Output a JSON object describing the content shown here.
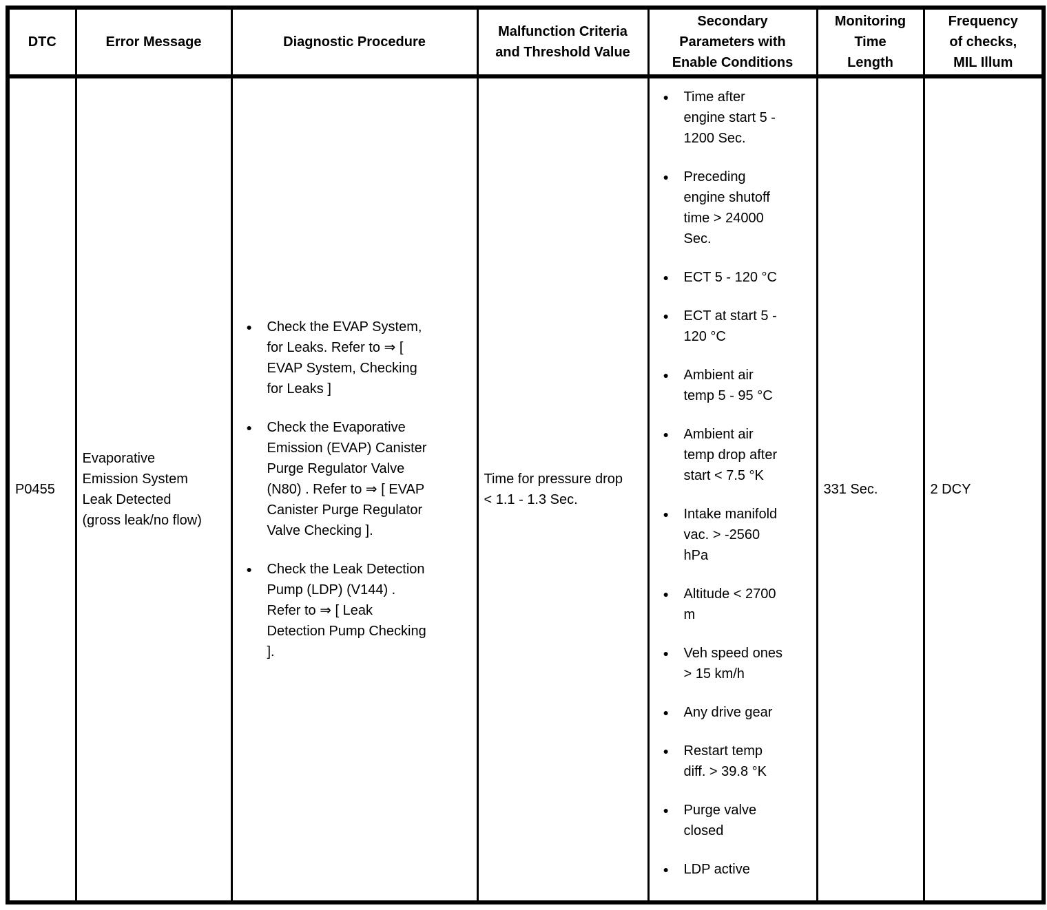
{
  "colors": {
    "text": "#000000",
    "background": "#ffffff",
    "border": "#000000"
  },
  "bullet_glyph": "●",
  "table": {
    "headers": [
      "DTC",
      "Error Message",
      "Diagnostic Procedure",
      "Malfunction Criteria and Threshold Value",
      "Secondary Parameters with Enable Conditions",
      "Monitoring Time Length",
      "Frequency of checks, MIL Illum"
    ],
    "rows": [
      {
        "dtc": "P0455",
        "error_message": "Evaporative Emission System Leak Detected (gross leak/no flow)",
        "diagnostic_procedure": [
          "Check the EVAP System, for Leaks. Refer to ⇒ [ EVAP System, Checking for Leaks ]",
          "Check the Evaporative Emission (EVAP) Canister Purge Regulator Valve (N80) . Refer to ⇒ [ EVAP Canister Purge Regulator Valve Checking ].",
          "Check the Leak Detection Pump (LDP) (V144) . Refer to ⇒ [ Leak Detection Pump Checking ]."
        ],
        "malfunction_criteria": "Time for pressure drop < 1.1 - 1.3 Sec.",
        "secondary_parameters": [
          "Time after engine start 5 - 1200 Sec.",
          "Preceding engine shutoff time > 24000 Sec.",
          "ECT 5 - 120 °C",
          "ECT at start 5 - 120 °C",
          "Ambient air temp 5 - 95 °C",
          "Ambient air temp drop after start < 7.5 °K",
          "Intake manifold vac. > -2560 hPa",
          "Altitude < 2700 m",
          "Veh speed ones > 15 km/h",
          "Any drive gear",
          "Restart temp diff. > 39.8 °K",
          "Purge valve closed",
          "LDP active"
        ],
        "monitoring_time": "331 Sec.",
        "frequency_of_checks": "2 DCY"
      }
    ]
  }
}
